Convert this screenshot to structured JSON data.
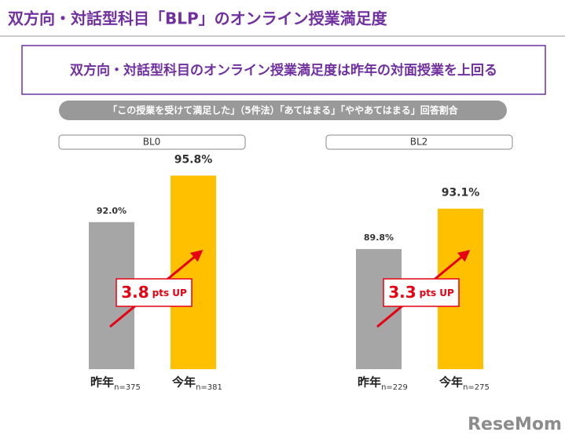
{
  "title": "双方向・対話型科目「BLP」のオンライン授業満足度",
  "subtitle": "双方向・対話型科目のオンライン授業満足度は昨年の対面授業を上回る",
  "note": "「この授業を受けて満足した」（5件法）「あてはまる」「ややあてはまる」回答割合",
  "watermark": "ReseMom",
  "chart_data": [
    {
      "type": "bar",
      "title": "BL0",
      "categories": [
        "昨年",
        "今年"
      ],
      "sample_sizes": [
        "n=375",
        "n=381"
      ],
      "values": [
        92.0,
        95.8
      ],
      "value_labels": [
        "92.0%",
        "95.8%"
      ],
      "colors": [
        "#a6a6a6",
        "#ffc000"
      ],
      "ylim": [
        80,
        100
      ],
      "annotation": {
        "number": "3.8",
        "unit": "pts UP"
      }
    },
    {
      "type": "bar",
      "title": "BL2",
      "categories": [
        "昨年",
        "今年"
      ],
      "sample_sizes": [
        "n=229",
        "n=275"
      ],
      "values": [
        89.8,
        93.1
      ],
      "value_labels": [
        "89.8%",
        "93.1%"
      ],
      "colors": [
        "#a6a6a6",
        "#ffc000"
      ],
      "ylim": [
        80,
        100
      ],
      "annotation": {
        "number": "3.3",
        "unit": "pts UP"
      }
    }
  ]
}
